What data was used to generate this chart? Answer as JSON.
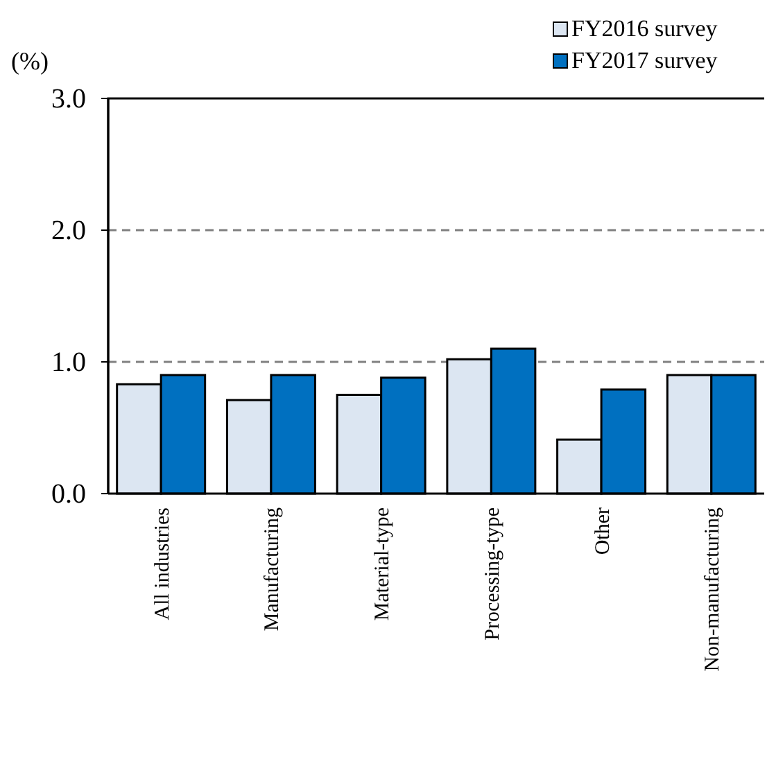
{
  "chart_data": {
    "type": "bar",
    "ylabel": "(%)",
    "categories": [
      "All industries",
      "Manufacturing",
      "Material-type",
      "Processing-type",
      "Other",
      "Non-manufacturing"
    ],
    "series": [
      {
        "name": "FY2016 survey",
        "color": "#dce6f2",
        "values": [
          0.83,
          0.71,
          0.75,
          1.02,
          0.41,
          0.9
        ]
      },
      {
        "name": "FY2017 survey",
        "color": "#0070c0",
        "values": [
          0.9,
          0.9,
          0.88,
          1.1,
          0.79,
          0.9
        ]
      }
    ],
    "ylim": [
      0,
      3
    ],
    "yticks": [
      {
        "value": 0,
        "label": "0.0"
      },
      {
        "value": 1,
        "label": "1.0"
      },
      {
        "value": 2,
        "label": "2.0"
      },
      {
        "value": 3,
        "label": "3.0"
      }
    ],
    "grid": "y",
    "legend": "top right"
  }
}
